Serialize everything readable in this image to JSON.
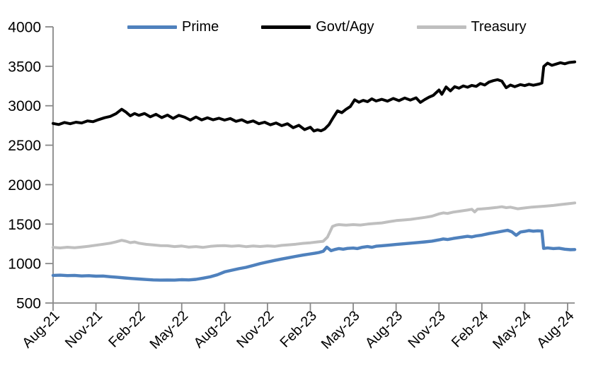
{
  "chart_data": {
    "type": "line",
    "title": "",
    "grid": false,
    "legend_position": "top",
    "axis_color": "#898989",
    "text_color": "#000000",
    "x_axis": {
      "unit": "month (0 = Aug-21)",
      "range_months": [
        0,
        36.5
      ],
      "tick_positions_months": [
        0,
        3,
        6,
        9,
        12,
        15,
        18,
        21,
        24,
        27,
        30,
        33,
        36
      ],
      "tick_labels": [
        "Aug-21",
        "Nov-21",
        "Feb-22",
        "May-22",
        "Aug-22",
        "Nov-22",
        "Feb-23",
        "May-23",
        "Aug-23",
        "Nov-23",
        "Feb-24",
        "May-24",
        "Aug-24"
      ]
    },
    "y_axis": {
      "range": [
        500,
        4000
      ],
      "ticks": [
        500,
        1000,
        1500,
        2000,
        2500,
        3000,
        3500,
        4000
      ],
      "tick_labels": [
        "500",
        "1000",
        "1500",
        "2000",
        "2500",
        "3000",
        "3500",
        "4000"
      ]
    },
    "series": [
      {
        "name": "Prime",
        "color": "#4f81bd",
        "line_width": 4.4,
        "points": [
          [
            0,
            850
          ],
          [
            0.5,
            853
          ],
          [
            1,
            847
          ],
          [
            1.5,
            850
          ],
          [
            2,
            843
          ],
          [
            2.5,
            846
          ],
          [
            3,
            840
          ],
          [
            3.5,
            842
          ],
          [
            4,
            833
          ],
          [
            4.5,
            826
          ],
          [
            5,
            818
          ],
          [
            5.5,
            811
          ],
          [
            6,
            804
          ],
          [
            6.5,
            798
          ],
          [
            7,
            793
          ],
          [
            7.5,
            790
          ],
          [
            8,
            792
          ],
          [
            8.5,
            790
          ],
          [
            9,
            795
          ],
          [
            9.5,
            793
          ],
          [
            10,
            800
          ],
          [
            10.5,
            815
          ],
          [
            11,
            832
          ],
          [
            11.5,
            858
          ],
          [
            12,
            895
          ],
          [
            12.5,
            915
          ],
          [
            13,
            935
          ],
          [
            13.5,
            952
          ],
          [
            14,
            975
          ],
          [
            14.5,
            1000
          ],
          [
            15,
            1020
          ],
          [
            15.5,
            1040
          ],
          [
            16,
            1058
          ],
          [
            16.5,
            1075
          ],
          [
            17,
            1092
          ],
          [
            17.5,
            1108
          ],
          [
            18,
            1122
          ],
          [
            18.3,
            1130
          ],
          [
            18.6,
            1140
          ],
          [
            18.9,
            1155
          ],
          [
            19.15,
            1208
          ],
          [
            19.45,
            1163
          ],
          [
            19.7,
            1178
          ],
          [
            20,
            1190
          ],
          [
            20.3,
            1182
          ],
          [
            20.6,
            1192
          ],
          [
            21,
            1196
          ],
          [
            21.3,
            1190
          ],
          [
            21.6,
            1205
          ],
          [
            22,
            1215
          ],
          [
            22.3,
            1206
          ],
          [
            22.6,
            1220
          ],
          [
            23,
            1226
          ],
          [
            23.5,
            1233
          ],
          [
            24,
            1242
          ],
          [
            24.5,
            1250
          ],
          [
            25,
            1258
          ],
          [
            25.5,
            1266
          ],
          [
            26,
            1274
          ],
          [
            26.5,
            1284
          ],
          [
            27,
            1300
          ],
          [
            27.3,
            1312
          ],
          [
            27.6,
            1305
          ],
          [
            28,
            1318
          ],
          [
            28.5,
            1332
          ],
          [
            29,
            1345
          ],
          [
            29.3,
            1338
          ],
          [
            29.6,
            1350
          ],
          [
            30,
            1360
          ],
          [
            30.5,
            1380
          ],
          [
            31,
            1395
          ],
          [
            31.5,
            1412
          ],
          [
            31.8,
            1422
          ],
          [
            32.1,
            1402
          ],
          [
            32.4,
            1358
          ],
          [
            32.7,
            1400
          ],
          [
            33,
            1408
          ],
          [
            33.3,
            1418
          ],
          [
            33.6,
            1410
          ],
          [
            33.9,
            1415
          ],
          [
            34.2,
            1412
          ],
          [
            34.32,
            1192
          ],
          [
            34.6,
            1198
          ],
          [
            35,
            1190
          ],
          [
            35.4,
            1195
          ],
          [
            35.8,
            1182
          ],
          [
            36.2,
            1176
          ],
          [
            36.5,
            1178
          ]
        ]
      },
      {
        "name": "Govt/Agy",
        "color": "#000000",
        "line_width": 4.0,
        "points": [
          [
            0,
            2775
          ],
          [
            0.4,
            2762
          ],
          [
            0.8,
            2788
          ],
          [
            1.2,
            2772
          ],
          [
            1.6,
            2792
          ],
          [
            2,
            2782
          ],
          [
            2.4,
            2808
          ],
          [
            2.8,
            2798
          ],
          [
            3.2,
            2825
          ],
          [
            3.6,
            2848
          ],
          [
            4,
            2865
          ],
          [
            4.4,
            2900
          ],
          [
            4.8,
            2955
          ],
          [
            5.1,
            2920
          ],
          [
            5.4,
            2872
          ],
          [
            5.7,
            2902
          ],
          [
            6,
            2878
          ],
          [
            6.4,
            2902
          ],
          [
            6.8,
            2860
          ],
          [
            7.2,
            2892
          ],
          [
            7.6,
            2850
          ],
          [
            8,
            2882
          ],
          [
            8.4,
            2840
          ],
          [
            8.8,
            2878
          ],
          [
            9.2,
            2855
          ],
          [
            9.6,
            2818
          ],
          [
            10,
            2858
          ],
          [
            10.4,
            2820
          ],
          [
            10.8,
            2848
          ],
          [
            11.2,
            2822
          ],
          [
            11.6,
            2842
          ],
          [
            12,
            2818
          ],
          [
            12.4,
            2838
          ],
          [
            12.8,
            2802
          ],
          [
            13.2,
            2822
          ],
          [
            13.6,
            2788
          ],
          [
            14,
            2808
          ],
          [
            14.4,
            2772
          ],
          [
            14.8,
            2792
          ],
          [
            15.2,
            2758
          ],
          [
            15.6,
            2782
          ],
          [
            16,
            2748
          ],
          [
            16.4,
            2772
          ],
          [
            16.8,
            2722
          ],
          [
            17.2,
            2752
          ],
          [
            17.6,
            2698
          ],
          [
            18,
            2728
          ],
          [
            18.25,
            2680
          ],
          [
            18.5,
            2695
          ],
          [
            18.75,
            2682
          ],
          [
            19,
            2705
          ],
          [
            19.3,
            2760
          ],
          [
            19.6,
            2850
          ],
          [
            19.9,
            2935
          ],
          [
            20.2,
            2912
          ],
          [
            20.5,
            2955
          ],
          [
            20.8,
            2990
          ],
          [
            21.1,
            3075
          ],
          [
            21.4,
            3045
          ],
          [
            21.7,
            3068
          ],
          [
            22,
            3052
          ],
          [
            22.3,
            3088
          ],
          [
            22.6,
            3060
          ],
          [
            23,
            3082
          ],
          [
            23.4,
            3058
          ],
          [
            23.8,
            3092
          ],
          [
            24.2,
            3065
          ],
          [
            24.6,
            3098
          ],
          [
            25,
            3072
          ],
          [
            25.4,
            3100
          ],
          [
            25.7,
            3042
          ],
          [
            26,
            3078
          ],
          [
            26.3,
            3108
          ],
          [
            26.6,
            3132
          ],
          [
            27,
            3200
          ],
          [
            27.2,
            3145
          ],
          [
            27.5,
            3238
          ],
          [
            27.8,
            3188
          ],
          [
            28.1,
            3242
          ],
          [
            28.4,
            3222
          ],
          [
            28.7,
            3252
          ],
          [
            29,
            3235
          ],
          [
            29.3,
            3258
          ],
          [
            29.6,
            3245
          ],
          [
            29.9,
            3282
          ],
          [
            30.2,
            3262
          ],
          [
            30.5,
            3300
          ],
          [
            30.8,
            3318
          ],
          [
            31.1,
            3330
          ],
          [
            31.4,
            3312
          ],
          [
            31.7,
            3228
          ],
          [
            32,
            3262
          ],
          [
            32.3,
            3242
          ],
          [
            32.7,
            3268
          ],
          [
            33,
            3255
          ],
          [
            33.3,
            3272
          ],
          [
            33.6,
            3260
          ],
          [
            34,
            3275
          ],
          [
            34.2,
            3288
          ],
          [
            34.33,
            3498
          ],
          [
            34.6,
            3540
          ],
          [
            34.9,
            3512
          ],
          [
            35.2,
            3528
          ],
          [
            35.5,
            3545
          ],
          [
            35.8,
            3532
          ],
          [
            36.1,
            3548
          ],
          [
            36.5,
            3556
          ]
        ]
      },
      {
        "name": "Treasury",
        "color": "#bfbfbf",
        "line_width": 4.0,
        "points": [
          [
            0,
            1205
          ],
          [
            0.5,
            1198
          ],
          [
            1,
            1207
          ],
          [
            1.5,
            1200
          ],
          [
            2,
            1210
          ],
          [
            2.5,
            1220
          ],
          [
            3,
            1232
          ],
          [
            3.5,
            1245
          ],
          [
            4,
            1258
          ],
          [
            4.4,
            1275
          ],
          [
            4.8,
            1295
          ],
          [
            5.1,
            1283
          ],
          [
            5.4,
            1265
          ],
          [
            5.7,
            1273
          ],
          [
            6,
            1258
          ],
          [
            6.5,
            1244
          ],
          [
            7,
            1236
          ],
          [
            7.5,
            1228
          ],
          [
            8,
            1226
          ],
          [
            8.5,
            1215
          ],
          [
            9,
            1222
          ],
          [
            9.5,
            1208
          ],
          [
            10,
            1215
          ],
          [
            10.5,
            1205
          ],
          [
            11,
            1218
          ],
          [
            11.5,
            1225
          ],
          [
            12,
            1228
          ],
          [
            12.5,
            1220
          ],
          [
            13,
            1226
          ],
          [
            13.5,
            1214
          ],
          [
            14,
            1222
          ],
          [
            14.5,
            1216
          ],
          [
            15,
            1224
          ],
          [
            15.5,
            1218
          ],
          [
            16,
            1230
          ],
          [
            16.5,
            1238
          ],
          [
            17,
            1246
          ],
          [
            17.5,
            1256
          ],
          [
            18,
            1264
          ],
          [
            18.5,
            1274
          ],
          [
            18.9,
            1282
          ],
          [
            19.2,
            1335
          ],
          [
            19.55,
            1470
          ],
          [
            19.8,
            1488
          ],
          [
            20,
            1494
          ],
          [
            20.5,
            1486
          ],
          [
            21,
            1494
          ],
          [
            21.5,
            1488
          ],
          [
            22,
            1500
          ],
          [
            22.5,
            1508
          ],
          [
            23,
            1515
          ],
          [
            23.5,
            1530
          ],
          [
            24,
            1545
          ],
          [
            24.5,
            1552
          ],
          [
            25,
            1560
          ],
          [
            25.5,
            1572
          ],
          [
            26,
            1585
          ],
          [
            26.5,
            1600
          ],
          [
            27,
            1630
          ],
          [
            27.3,
            1642
          ],
          [
            27.6,
            1635
          ],
          [
            28,
            1652
          ],
          [
            28.5,
            1665
          ],
          [
            29,
            1678
          ],
          [
            29.3,
            1688
          ],
          [
            29.5,
            1655
          ],
          [
            29.7,
            1690
          ],
          [
            30,
            1692
          ],
          [
            30.5,
            1700
          ],
          [
            31,
            1710
          ],
          [
            31.4,
            1720
          ],
          [
            31.7,
            1708
          ],
          [
            32,
            1715
          ],
          [
            32.5,
            1694
          ],
          [
            33,
            1705
          ],
          [
            33.5,
            1716
          ],
          [
            34,
            1722
          ],
          [
            34.5,
            1728
          ],
          [
            35,
            1736
          ],
          [
            35.5,
            1748
          ],
          [
            36,
            1758
          ],
          [
            36.5,
            1768
          ]
        ]
      }
    ]
  }
}
